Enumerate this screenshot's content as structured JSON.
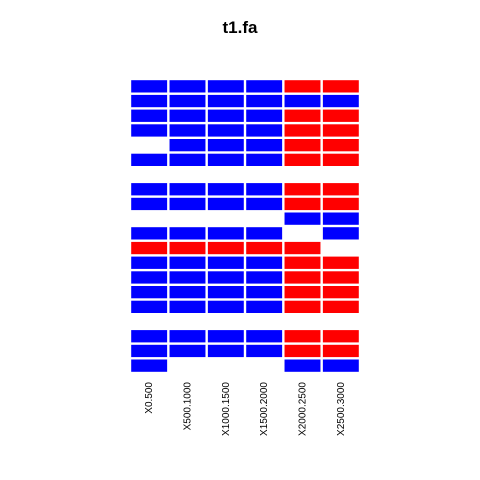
{
  "chart_data": {
    "type": "heatmap",
    "title": "t1.fa",
    "xlabel": "",
    "ylabel": "",
    "columns": [
      "X0.500",
      "X500.1000",
      "X1000.1500",
      "X1500.2000",
      "X2000.2500",
      "X2500.3000"
    ],
    "colors": {
      "blue": "#0000ff",
      "red": "#ff0000",
      "empty": "#ffffff",
      "separator": "#ffffff"
    },
    "legend": "none",
    "grid": false,
    "rows": [
      [
        "blue",
        "blue",
        "blue",
        "blue",
        "red",
        "red"
      ],
      [
        "blue",
        "blue",
        "blue",
        "blue",
        "blue",
        "blue"
      ],
      [
        "blue",
        "blue",
        "blue",
        "blue",
        "red",
        "red"
      ],
      [
        "blue",
        "blue",
        "blue",
        "blue",
        "red",
        "red"
      ],
      [
        "empty",
        "blue",
        "blue",
        "blue",
        "red",
        "red"
      ],
      [
        "blue",
        "blue",
        "blue",
        "blue",
        "red",
        "red"
      ],
      [
        "empty",
        "empty",
        "empty",
        "empty",
        "empty",
        "empty"
      ],
      [
        "blue",
        "blue",
        "blue",
        "blue",
        "red",
        "red"
      ],
      [
        "blue",
        "blue",
        "blue",
        "blue",
        "red",
        "red"
      ],
      [
        "empty",
        "empty",
        "empty",
        "empty",
        "blue",
        "blue"
      ],
      [
        "blue",
        "blue",
        "blue",
        "blue",
        "empty",
        "blue"
      ],
      [
        "red",
        "red",
        "red",
        "red",
        "red",
        "empty"
      ],
      [
        "blue",
        "blue",
        "blue",
        "blue",
        "red",
        "red"
      ],
      [
        "blue",
        "blue",
        "blue",
        "blue",
        "red",
        "red"
      ],
      [
        "blue",
        "blue",
        "blue",
        "blue",
        "red",
        "red"
      ],
      [
        "blue",
        "blue",
        "blue",
        "blue",
        "red",
        "red"
      ],
      [
        "empty",
        "empty",
        "empty",
        "empty",
        "empty",
        "empty"
      ],
      [
        "blue",
        "blue",
        "blue",
        "blue",
        "red",
        "red"
      ],
      [
        "blue",
        "blue",
        "blue",
        "blue",
        "red",
        "red"
      ],
      [
        "blue",
        "empty",
        "empty",
        "empty",
        "blue",
        "blue"
      ]
    ]
  }
}
